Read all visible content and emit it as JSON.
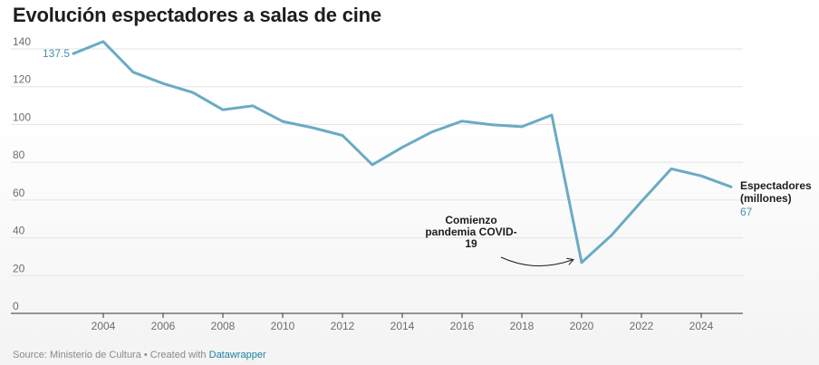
{
  "title": "Evolución espectadores a salas de cine",
  "footer": {
    "source": "Source: Ministerio de Cultura • Created with ",
    "credit": "Datawrapper"
  },
  "colors": {
    "line": "#6aabc3",
    "value_label": "#4d90ad",
    "text": "#1d1d1d"
  },
  "chart_data": {
    "type": "line",
    "title": "Evolución espectadores a salas de cine",
    "x": [
      2003,
      2004,
      2005,
      2006,
      2007,
      2008,
      2009,
      2010,
      2011,
      2012,
      2013,
      2014,
      2015,
      2016,
      2017,
      2018,
      2019,
      2020,
      2021,
      2022,
      2023,
      2024,
      2025
    ],
    "series": [
      {
        "name": "Espectadores (millones)",
        "values": [
          137.5,
          143.9,
          127.7,
          121.7,
          116.9,
          107.8,
          109.9,
          101.6,
          98.3,
          94.2,
          78.7,
          87.9,
          96.1,
          101.8,
          99.8,
          98.8,
          105.0,
          26.9,
          41.4,
          59.2,
          76.5,
          72.8,
          67
        ]
      }
    ],
    "series_label": [
      "Espectadores",
      "(millones)"
    ],
    "start_label": "137.5",
    "end_label": "67",
    "ylim": [
      0,
      140
    ],
    "yticks": [
      0,
      20,
      40,
      60,
      80,
      100,
      120,
      140
    ],
    "xticks": [
      2004,
      2006,
      2008,
      2010,
      2012,
      2014,
      2016,
      2018,
      2020,
      2022,
      2024
    ],
    "xlim": [
      2003,
      2025
    ],
    "grid": true,
    "annotation": {
      "lines": [
        "Comienzo",
        "pandemia COVID-",
        "19"
      ],
      "points_to": {
        "x": 2020,
        "y": 26.9
      }
    }
  }
}
